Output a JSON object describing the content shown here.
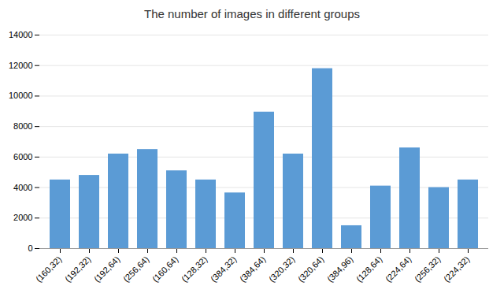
{
  "chart_data": {
    "type": "bar",
    "title": "The number of images in different groups",
    "categories": [
      "(160,32)",
      "(192,32)",
      "(192,64)",
      "(256,64)",
      "(160,64)",
      "(128,32)",
      "(384,32)",
      "(384,64)",
      "(320,32)",
      "(320,64)",
      "(384,96)",
      "(128,64)",
      "(224,64)",
      "(256,32)",
      "(224,32)"
    ],
    "values": [
      4500,
      4800,
      6200,
      6500,
      5100,
      4500,
      3650,
      8950,
      6200,
      11800,
      1500,
      4100,
      6600,
      4000,
      4500
    ],
    "color": "#5b9bd5",
    "ylim": [
      0,
      14000
    ],
    "yticks": [
      0,
      2000,
      4000,
      6000,
      8000,
      10000,
      12000,
      14000
    ],
    "grid": true
  }
}
